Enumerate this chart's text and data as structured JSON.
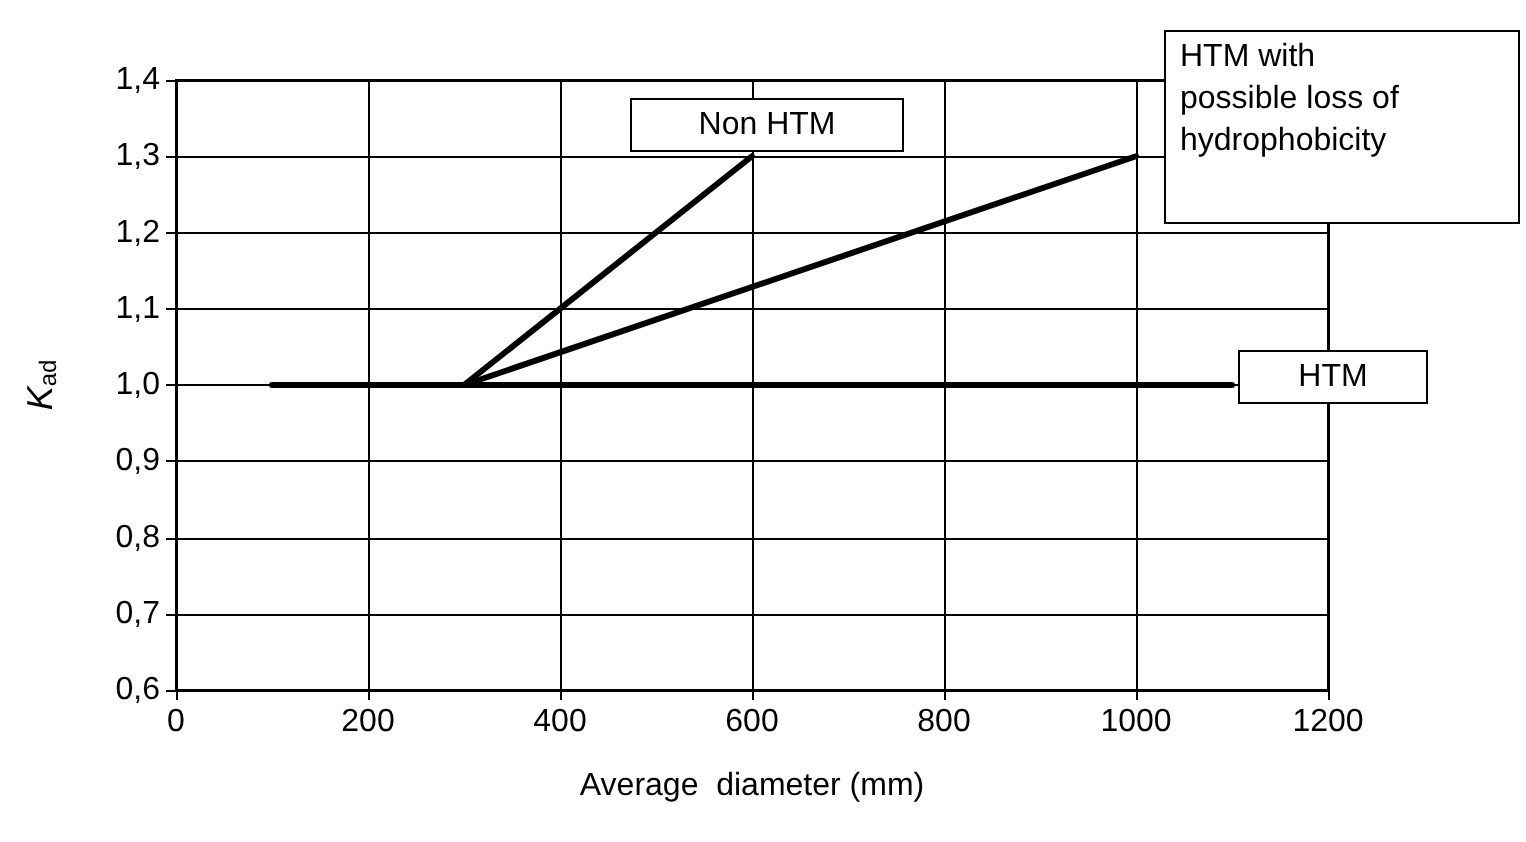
{
  "chart_data": {
    "type": "line",
    "xlabel": "Average  diameter (mm)",
    "ylabel": "K$_{ad}$",
    "xlim": [
      0,
      1200
    ],
    "xticks": [
      0,
      200,
      400,
      600,
      800,
      1000,
      1200
    ],
    "ylim": [
      0.6,
      1.4
    ],
    "yticks": [
      {
        "value": 0.6,
        "label": "0,6"
      },
      {
        "value": 0.7,
        "label": "0,7"
      },
      {
        "value": 0.8,
        "label": "0,8"
      },
      {
        "value": 0.9,
        "label": "0,9"
      },
      {
        "value": 1.0,
        "label": "1,0"
      },
      {
        "value": 1.1,
        "label": "1,1"
      },
      {
        "value": 1.2,
        "label": "1,2"
      },
      {
        "value": 1.3,
        "label": "1,3"
      },
      {
        "value": 1.4,
        "label": "1,4"
      }
    ],
    "grid": true,
    "legend": false,
    "marker": "none",
    "line_style": "solid",
    "series": [
      {
        "name": "Non HTM",
        "color": "#000000",
        "x": [
          300,
          600
        ],
        "values": [
          1.0,
          1.3
        ]
      },
      {
        "name": "HTM with possible loss of hydrophobicity",
        "color": "#000000",
        "x": [
          300,
          1000
        ],
        "values": [
          1.0,
          1.3
        ]
      },
      {
        "name": "HTM",
        "color": "#000000",
        "x": [
          100,
          1100
        ],
        "values": [
          1.0,
          1.0
        ]
      }
    ]
  }
}
